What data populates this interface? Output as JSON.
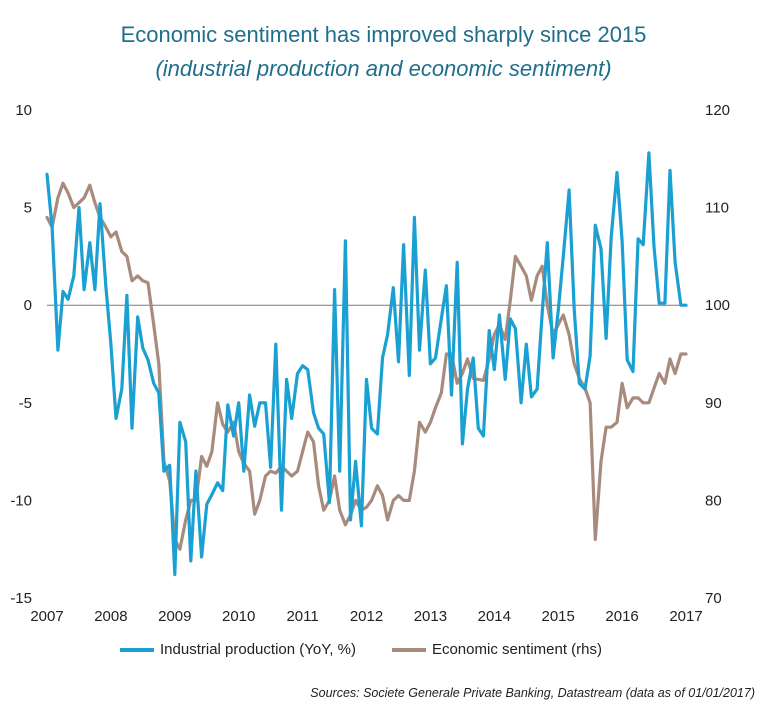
{
  "title": "Economic sentiment has improved sharply since 2015",
  "subtitle": "(industrial production and economic sentiment)",
  "source": "Sources: Societe Generale Private Banking, Datastream (data as of 01/01/2017)",
  "chart_data": {
    "type": "line",
    "x_ticks": [
      "2007",
      "2008",
      "2009",
      "2010",
      "2011",
      "2012",
      "2013",
      "2014",
      "2015",
      "2016",
      "2017"
    ],
    "y_left": {
      "ticks": [
        "10",
        "5",
        "0",
        "-5",
        "-10",
        "-15"
      ],
      "range": [
        -15,
        10
      ]
    },
    "y_right": {
      "ticks": [
        "120",
        "110",
        "100",
        "90",
        "80",
        "70"
      ],
      "range": [
        70,
        120
      ]
    },
    "colors": {
      "industrial": "#1aa0d2",
      "sentiment": "#a88b7d",
      "zero_line": "#7a7a7a"
    },
    "series": [
      {
        "name": "Industrial production (YoY, %)",
        "axis": "left",
        "x": [
          2007.0,
          2007.08,
          2007.17,
          2007.25,
          2007.33,
          2007.42,
          2007.5,
          2007.58,
          2007.67,
          2007.75,
          2007.83,
          2007.92,
          2008.0,
          2008.08,
          2008.17,
          2008.25,
          2008.33,
          2008.42,
          2008.5,
          2008.58,
          2008.67,
          2008.75,
          2008.83,
          2008.92,
          2009.0,
          2009.08,
          2009.17,
          2009.25,
          2009.33,
          2009.42,
          2009.5,
          2009.58,
          2009.67,
          2009.75,
          2009.83,
          2009.92,
          2010.0,
          2010.08,
          2010.17,
          2010.25,
          2010.33,
          2010.42,
          2010.5,
          2010.58,
          2010.67,
          2010.75,
          2010.83,
          2010.92,
          2011.0,
          2011.08,
          2011.17,
          2011.25,
          2011.33,
          2011.42,
          2011.5,
          2011.58,
          2011.67,
          2011.75,
          2011.83,
          2011.92,
          2012.0,
          2012.08,
          2012.17,
          2012.25,
          2012.33,
          2012.42,
          2012.5,
          2012.58,
          2012.67,
          2012.75,
          2012.83,
          2012.92,
          2013.0,
          2013.08,
          2013.17,
          2013.25,
          2013.33,
          2013.42,
          2013.5,
          2013.58,
          2013.67,
          2013.75,
          2013.83,
          2013.92,
          2014.0,
          2014.08,
          2014.17,
          2014.25,
          2014.33,
          2014.42,
          2014.5,
          2014.58,
          2014.67,
          2014.75,
          2014.83,
          2014.92,
          2015.0,
          2015.08,
          2015.17,
          2015.25,
          2015.33,
          2015.42,
          2015.5,
          2015.58,
          2015.67,
          2015.75,
          2015.83,
          2015.92,
          2016.0,
          2016.08,
          2016.17,
          2016.25,
          2016.33,
          2016.42,
          2016.5,
          2016.58,
          2016.67,
          2016.75,
          2016.83,
          2016.92,
          2017.0
        ],
        "values": [
          6.7,
          4.0,
          -2.3,
          0.7,
          0.3,
          1.5,
          5.0,
          0.8,
          3.2,
          0.8,
          5.2,
          1.0,
          -2.0,
          -5.8,
          -4.3,
          0.5,
          -6.3,
          -0.6,
          -2.2,
          -2.8,
          -4.0,
          -4.5,
          -8.5,
          -8.2,
          -13.8,
          -6.0,
          -7.0,
          -13.1,
          -8.5,
          -12.9,
          -10.2,
          -9.7,
          -9.1,
          -9.5,
          -5.1,
          -6.7,
          -5.0,
          -8.5,
          -4.6,
          -6.2,
          -5.0,
          -5.0,
          -8.3,
          -2.0,
          -10.5,
          -3.8,
          -5.8,
          -3.5,
          -3.1,
          -3.3,
          -5.5,
          -6.3,
          -6.6,
          -10.1,
          0.8,
          -8.5,
          3.3,
          -11.0,
          -8.0,
          -11.3,
          -3.8,
          -6.3,
          -6.6,
          -2.7,
          -1.5,
          0.9,
          -2.9,
          3.1,
          -3.6,
          4.5,
          -2.3,
          1.8,
          -3.0,
          -2.7,
          -0.7,
          1.0,
          -4.6,
          2.2,
          -7.1,
          -4.3,
          -2.7,
          -6.3,
          -6.7,
          -1.3,
          -3.3,
          -0.5,
          -3.8,
          -0.7,
          -1.2,
          -5.0,
          -2.0,
          -4.7,
          -4.3,
          -0.4,
          3.2,
          -2.7,
          -0.3,
          2.5,
          5.9,
          -0.2,
          -4.0,
          -4.3,
          -2.6,
          4.1,
          2.9,
          -1.7,
          3.5,
          6.8,
          3.3,
          -2.8,
          -3.4,
          3.4,
          3.1,
          7.8,
          3.0,
          0.1,
          0.1,
          6.9,
          2.2,
          0.0,
          0.0
        ]
      },
      {
        "name": "Economic sentiment (rhs)",
        "axis": "right",
        "x": [
          2007.0,
          2007.08,
          2007.17,
          2007.25,
          2007.33,
          2007.42,
          2007.5,
          2007.58,
          2007.67,
          2007.75,
          2007.83,
          2007.92,
          2008.0,
          2008.08,
          2008.17,
          2008.25,
          2008.33,
          2008.42,
          2008.5,
          2008.58,
          2008.67,
          2008.75,
          2008.83,
          2008.92,
          2009.0,
          2009.08,
          2009.17,
          2009.25,
          2009.33,
          2009.42,
          2009.5,
          2009.58,
          2009.67,
          2009.75,
          2009.83,
          2009.92,
          2010.0,
          2010.08,
          2010.17,
          2010.25,
          2010.33,
          2010.42,
          2010.5,
          2010.58,
          2010.67,
          2010.75,
          2010.83,
          2010.92,
          2011.0,
          2011.08,
          2011.17,
          2011.25,
          2011.33,
          2011.42,
          2011.5,
          2011.58,
          2011.67,
          2011.75,
          2011.83,
          2011.92,
          2012.0,
          2012.08,
          2012.17,
          2012.25,
          2012.33,
          2012.42,
          2012.5,
          2012.58,
          2012.67,
          2012.75,
          2012.83,
          2012.92,
          2013.0,
          2013.08,
          2013.17,
          2013.25,
          2013.33,
          2013.42,
          2013.5,
          2013.58,
          2013.67,
          2013.75,
          2013.83,
          2013.92,
          2014.0,
          2014.08,
          2014.17,
          2014.25,
          2014.33,
          2014.42,
          2014.5,
          2014.58,
          2014.67,
          2014.75,
          2014.83,
          2014.92,
          2015.0,
          2015.08,
          2015.17,
          2015.25,
          2015.33,
          2015.42,
          2015.5,
          2015.58,
          2015.67,
          2015.75,
          2015.83,
          2015.92,
          2016.0,
          2016.08,
          2016.17,
          2016.25,
          2016.33,
          2016.42,
          2016.5,
          2016.58,
          2016.67,
          2016.75,
          2016.83,
          2016.92,
          2017.0
        ],
        "values": [
          109,
          108,
          111,
          112.5,
          111.5,
          110,
          110.5,
          111,
          112.3,
          110.5,
          109,
          108,
          107,
          107.5,
          105.5,
          105,
          102.5,
          103,
          102.5,
          102.3,
          98,
          94,
          84,
          82,
          76,
          75,
          78,
          80,
          80,
          84.5,
          83.5,
          85,
          90,
          87.8,
          87,
          88,
          85,
          83.8,
          83,
          78.6,
          80,
          82.5,
          83,
          82.8,
          83.5,
          83,
          82.5,
          83,
          85,
          87,
          86,
          81.5,
          79,
          80,
          82.5,
          79,
          77.5,
          78.5,
          80,
          79,
          79.3,
          80,
          81.5,
          80.5,
          78,
          80,
          80.5,
          80,
          80,
          83,
          88,
          87,
          88,
          89.5,
          91,
          95,
          95,
          92,
          93,
          94.5,
          92.5,
          92.4,
          92.3,
          94.5,
          97,
          98,
          96.5,
          100.5,
          105,
          104,
          103,
          100.5,
          103,
          104,
          100,
          97,
          98,
          99,
          97,
          94,
          92.5,
          91.5,
          90,
          76,
          84,
          87.5,
          87.5,
          88,
          92,
          89.5,
          90.5,
          90.5,
          90,
          90,
          91.5,
          93,
          92,
          94.5,
          93,
          95,
          95
        ]
      }
    ]
  }
}
